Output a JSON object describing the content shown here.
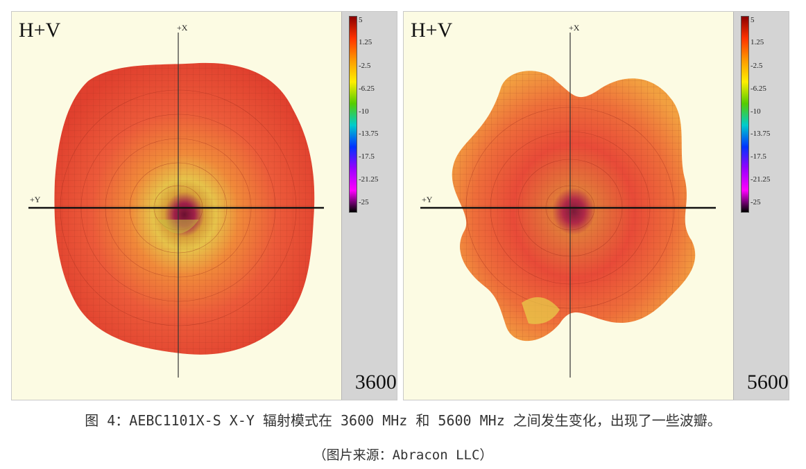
{
  "panels": [
    {
      "mode_label": "H+V",
      "frequency_label": "3600 MHz",
      "axis_x_label": "+X",
      "axis_y_label": "+Y"
    },
    {
      "mode_label": "H+V",
      "frequency_label": "5600 MHz",
      "axis_x_label": "+X",
      "axis_y_label": "+Y"
    }
  ],
  "colorbar": {
    "ticks": [
      "5",
      "1.25",
      "-2.5",
      "-6.25",
      "-10",
      "-13.75",
      "-17.5",
      "-21.25",
      "-25"
    ],
    "colors": [
      "#8b0000",
      "#ff3300",
      "#ff9900",
      "#ffee00",
      "#55cc00",
      "#00cccc",
      "#0033ff",
      "#9900ff",
      "#ff00ff",
      "#000000"
    ]
  },
  "caption": "图 4：AEBC1101X-S X-Y 辐射模式在 3600 MHz 和 5600 MHz 之间发生变化，出现了一些波瓣。",
  "source": "（图片来源：Abracon LLC）"
}
